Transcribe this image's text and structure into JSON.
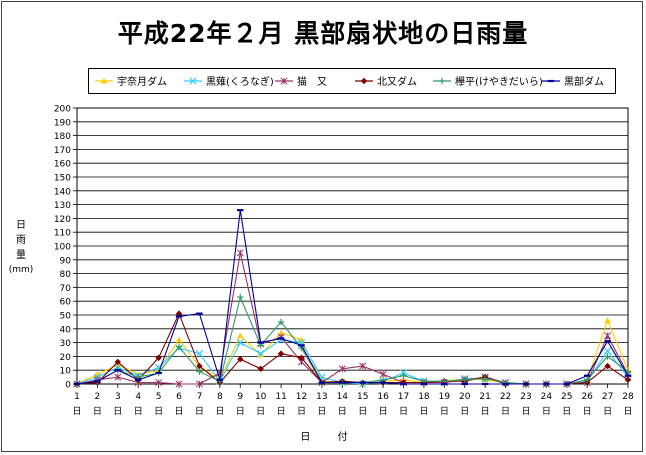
{
  "chart_data": {
    "type": "line",
    "title": "平成22年２月 黒部扇状地の日雨量",
    "ylabel": "日雨量(mm)",
    "xlabel": "日 付",
    "x": [
      1,
      2,
      3,
      4,
      5,
      6,
      7,
      8,
      9,
      10,
      11,
      12,
      13,
      14,
      15,
      16,
      17,
      18,
      19,
      20,
      21,
      22,
      23,
      24,
      25,
      26,
      27,
      28
    ],
    "x_unit": "日",
    "ylim": [
      0,
      200
    ],
    "yticks": [
      0,
      10,
      20,
      30,
      40,
      50,
      60,
      70,
      80,
      90,
      100,
      110,
      120,
      130,
      140,
      150,
      160,
      170,
      180,
      190,
      200
    ],
    "grid": true,
    "legend": "top",
    "series": [
      {
        "name": "宇奈月ダム",
        "color": "#ffcc00",
        "marker": "triangle",
        "values": [
          0,
          7,
          14,
          7,
          10,
          32,
          13,
          3,
          35,
          21,
          37,
          32,
          2,
          1,
          1,
          2,
          3,
          1,
          2,
          4,
          3,
          1,
          0,
          0,
          0,
          3,
          46,
          10
        ]
      },
      {
        "name": "黒薙(くろなぎ)",
        "color": "#33ccff",
        "marker": "x",
        "values": [
          0,
          5,
          12,
          6,
          12,
          26,
          22,
          2,
          30,
          22,
          32,
          30,
          5,
          1,
          0,
          2,
          8,
          2,
          1,
          4,
          4,
          1,
          0,
          0,
          0,
          2,
          24,
          5
        ]
      },
      {
        "name": "猫　又",
        "color": "#993366",
        "marker": "star",
        "values": [
          0,
          3,
          5,
          1,
          1,
          0,
          0,
          8,
          95,
          29,
          34,
          16,
          1,
          11,
          13,
          7,
          1,
          1,
          1,
          3,
          5,
          1,
          0,
          0,
          0,
          1,
          35,
          7
        ]
      },
      {
        "name": "北又ダム",
        "color": "#800000",
        "marker": "diamond",
        "values": [
          0,
          1,
          16,
          3,
          19,
          51,
          13,
          1,
          18,
          11,
          22,
          19,
          1,
          2,
          1,
          1,
          1,
          1,
          2,
          2,
          5,
          0,
          0,
          0,
          0,
          1,
          13,
          3
        ]
      },
      {
        "name": "欅平(けやきだいら)",
        "color": "#339966",
        "marker": "plus",
        "values": [
          0,
          2,
          10,
          5,
          8,
          27,
          9,
          2,
          63,
          28,
          45,
          26,
          1,
          1,
          1,
          3,
          6,
          2,
          2,
          3,
          4,
          1,
          0,
          0,
          0,
          3,
          20,
          9
        ]
      },
      {
        "name": "黒部ダム",
        "color": "#000099",
        "marker": "dash",
        "values": [
          0,
          2,
          10,
          3,
          8,
          49,
          51,
          3,
          126,
          30,
          33,
          28,
          1,
          1,
          1,
          1,
          0,
          0,
          0,
          0,
          0,
          0,
          0,
          0,
          0,
          6,
          31,
          6
        ]
      }
    ]
  }
}
